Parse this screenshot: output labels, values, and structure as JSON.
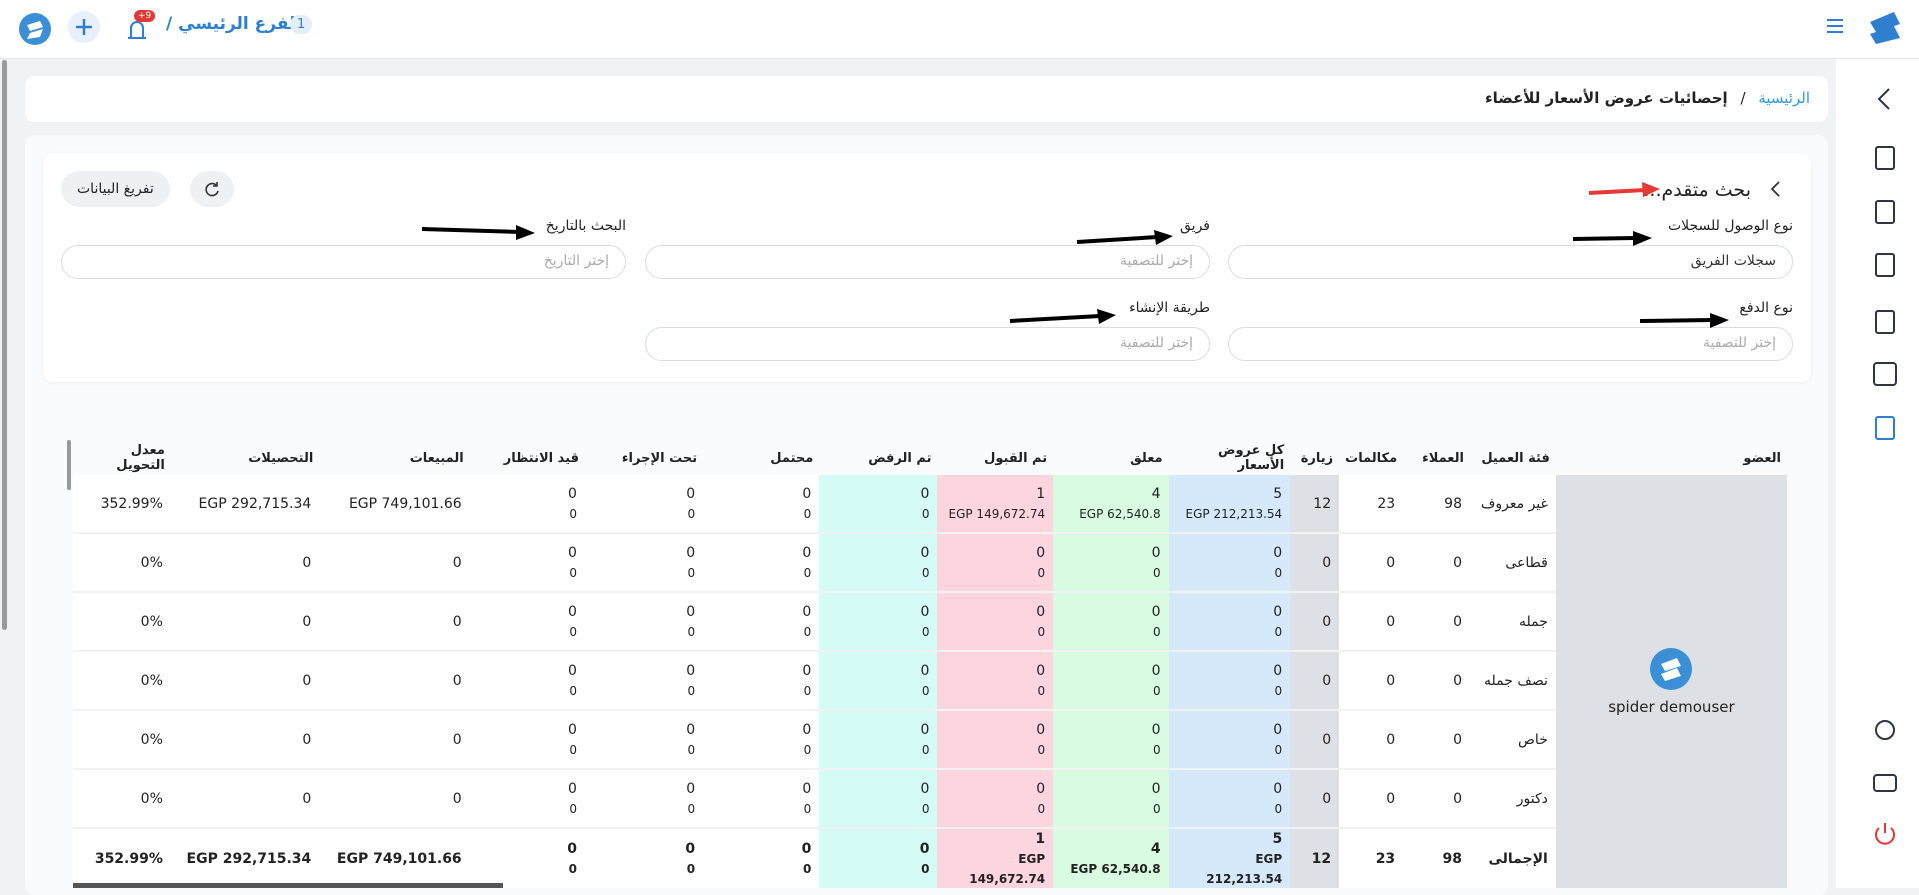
{
  "topbar": {
    "branch_badge": "1",
    "branch": "الفرع الرئيسي /",
    "notifications": "+9"
  },
  "breadcrumb": {
    "home": "الرئيسية",
    "separator": "/",
    "current": "إحصائيات عروض الأسعار للأعضاء"
  },
  "filters": {
    "title": "بحث متقدم...",
    "clear_button": "تفريغ البيانات",
    "fields": [
      {
        "label": "نوع الوصول للسجلات",
        "value": "سجلات الفريق"
      },
      {
        "label": "فريق",
        "value": "إختر للتصفية"
      },
      {
        "label": "البحث بالتاريخ",
        "value": "إختر التاريخ"
      },
      {
        "label": "نوع الدفع",
        "value": "إختر للتصفية"
      },
      {
        "label": "طريقة الإنشاء",
        "value": "إختر للتصفية"
      }
    ]
  },
  "table": {
    "headers": [
      "العضو",
      "فئة العميل",
      "العملاء",
      "مكالمات",
      "زيارة",
      "كل عروض الأسعار",
      "معلق",
      "تم القبول",
      "تم الرفض",
      "محتمل",
      "تحت الإجراء",
      "قيد الانتظار",
      "المبيعات",
      "التحصيلات",
      "معدل التحويل"
    ],
    "member": "spider demouser",
    "rows": [
      [
        "غير معروف",
        "98",
        "23",
        "12",
        [
          "5",
          "EGP 212,213.54"
        ],
        [
          "4",
          "EGP 62,540.8"
        ],
        [
          "1",
          "EGP 149,672.74"
        ],
        [
          "0",
          "0"
        ],
        [
          "0",
          "0"
        ],
        [
          "0",
          "0"
        ],
        [
          "0",
          "0"
        ],
        "EGP 749,101.66",
        "EGP 292,715.34",
        "352.99%"
      ],
      [
        "قطاعى",
        "0",
        "0",
        "0",
        [
          "0",
          "0"
        ],
        [
          "0",
          "0"
        ],
        [
          "0",
          "0"
        ],
        [
          "0",
          "0"
        ],
        [
          "0",
          "0"
        ],
        [
          "0",
          "0"
        ],
        [
          "0",
          "0"
        ],
        "0",
        "0",
        "0%"
      ],
      [
        "جمله",
        "0",
        "0",
        "0",
        [
          "0",
          "0"
        ],
        [
          "0",
          "0"
        ],
        [
          "0",
          "0"
        ],
        [
          "0",
          "0"
        ],
        [
          "0",
          "0"
        ],
        [
          "0",
          "0"
        ],
        [
          "0",
          "0"
        ],
        "0",
        "0",
        "0%"
      ],
      [
        "نصف جمله",
        "0",
        "0",
        "0",
        [
          "0",
          "0"
        ],
        [
          "0",
          "0"
        ],
        [
          "0",
          "0"
        ],
        [
          "0",
          "0"
        ],
        [
          "0",
          "0"
        ],
        [
          "0",
          "0"
        ],
        [
          "0",
          "0"
        ],
        "0",
        "0",
        "0%"
      ],
      [
        "خاص",
        "0",
        "0",
        "0",
        [
          "0",
          "0"
        ],
        [
          "0",
          "0"
        ],
        [
          "0",
          "0"
        ],
        [
          "0",
          "0"
        ],
        [
          "0",
          "0"
        ],
        [
          "0",
          "0"
        ],
        [
          "0",
          "0"
        ],
        "0",
        "0",
        "0%"
      ],
      [
        "دكتور",
        "0",
        "0",
        "0",
        [
          "0",
          "0"
        ],
        [
          "0",
          "0"
        ],
        [
          "0",
          "0"
        ],
        [
          "0",
          "0"
        ],
        [
          "0",
          "0"
        ],
        [
          "0",
          "0"
        ],
        [
          "0",
          "0"
        ],
        "0",
        "0",
        "0%"
      ]
    ],
    "total": [
      "الإجمالى",
      "98",
      "23",
      "12",
      [
        "5",
        "EGP 212,213.54"
      ],
      [
        "4",
        "EGP 62,540.8"
      ],
      [
        "1",
        "EGP 149,672.74"
      ],
      [
        "0",
        "0"
      ],
      [
        "0",
        "0"
      ],
      [
        "0",
        "0"
      ],
      [
        "0",
        "0"
      ],
      "EGP 749,101.66",
      "EGP 292,715.34",
      "352.99%"
    ]
  }
}
